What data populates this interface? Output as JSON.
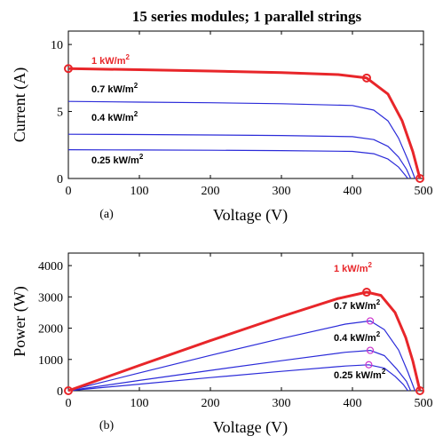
{
  "title": "15 series modules; 1 parallel strings",
  "colors": {
    "thin": "#2b2bd9",
    "thick": "#e8262a",
    "marker_blue": "#cc33cc",
    "marker_red": "#e8262a"
  },
  "chart_data": [
    {
      "type": "line",
      "panel_label": "(a)",
      "xlabel": "Voltage (V)",
      "ylabel": "Current (A)",
      "xlim": [
        0,
        500
      ],
      "ylim": [
        0,
        11
      ],
      "xticks": [
        "0",
        "100",
        "200",
        "300",
        "400",
        "500"
      ],
      "yticks": [
        "0",
        "5",
        "10"
      ],
      "xtick_values": [
        0,
        100,
        200,
        300,
        400,
        500
      ],
      "ytick_values": [
        0,
        5,
        10
      ],
      "grid": false,
      "series": [
        {
          "name": "1 kW/m2",
          "label_text": "1 kW/m",
          "label_sup": "2",
          "style": "thick",
          "points": [
            [
              0,
              8.2
            ],
            [
              100,
              8.12
            ],
            [
              200,
              8.02
            ],
            [
              300,
              7.9
            ],
            [
              380,
              7.75
            ],
            [
              420,
              7.5
            ],
            [
              450,
              6.3
            ],
            [
              470,
              4.3
            ],
            [
              485,
              2.0
            ],
            [
              495,
              0
            ]
          ],
          "markers": [
            [
              0,
              8.2
            ],
            [
              420,
              7.5
            ],
            [
              495,
              0
            ]
          ]
        },
        {
          "name": "0.7 kW/m2",
          "label_text": "0.7 kW/m",
          "label_sup": "2",
          "style": "thin",
          "points": [
            [
              0,
              5.75
            ],
            [
              100,
              5.7
            ],
            [
              200,
              5.65
            ],
            [
              300,
              5.58
            ],
            [
              400,
              5.45
            ],
            [
              430,
              5.1
            ],
            [
              450,
              4.3
            ],
            [
              465,
              3.0
            ],
            [
              478,
              1.4
            ],
            [
              488,
              0
            ]
          ]
        },
        {
          "name": "0.4 kW/m2",
          "label_text": "0.4 kW/m",
          "label_sup": "2",
          "style": "thin",
          "points": [
            [
              0,
              3.3
            ],
            [
              100,
              3.28
            ],
            [
              200,
              3.25
            ],
            [
              300,
              3.21
            ],
            [
              400,
              3.12
            ],
            [
              430,
              2.9
            ],
            [
              450,
              2.4
            ],
            [
              465,
              1.6
            ],
            [
              476,
              0.7
            ],
            [
              482,
              0
            ]
          ]
        },
        {
          "name": "0.25 kW/m2",
          "label_text": "0.25 kW/m",
          "label_sup": "2",
          "style": "thin",
          "points": [
            [
              0,
              2.15
            ],
            [
              100,
              2.13
            ],
            [
              200,
              2.11
            ],
            [
              300,
              2.08
            ],
            [
              400,
              2.02
            ],
            [
              430,
              1.85
            ],
            [
              450,
              1.45
            ],
            [
              465,
              0.85
            ],
            [
              472,
              0.4
            ],
            [
              478,
              0
            ]
          ]
        }
      ]
    },
    {
      "type": "line",
      "panel_label": "(b)",
      "xlabel": "Voltage (V)",
      "ylabel": "Power (W)",
      "xlim": [
        0,
        500
      ],
      "ylim": [
        0,
        4400
      ],
      "xticks": [
        "0",
        "100",
        "200",
        "300",
        "400",
        "500"
      ],
      "yticks": [
        "0",
        "1000",
        "2000",
        "3000",
        "4000"
      ],
      "xtick_values": [
        0,
        100,
        200,
        300,
        400,
        500
      ],
      "ytick_values": [
        0,
        1000,
        2000,
        3000,
        4000
      ],
      "grid": false,
      "series": [
        {
          "name": "1 kW/m2",
          "label_text": "1 kW/m",
          "label_sup": "2",
          "style": "thick",
          "points": [
            [
              0,
              0
            ],
            [
              100,
              810
            ],
            [
              200,
              1600
            ],
            [
              300,
              2370
            ],
            [
              380,
              2950
            ],
            [
              420,
              3150
            ],
            [
              440,
              3050
            ],
            [
              460,
              2500
            ],
            [
              475,
              1700
            ],
            [
              485,
              950
            ],
            [
              495,
              0
            ]
          ],
          "markers": [
            [
              0,
              0
            ],
            [
              420,
              3150
            ],
            [
              495,
              0
            ]
          ]
        },
        {
          "name": "0.7 kW/m2",
          "label_text": "0.7 kW/m",
          "label_sup": "2",
          "style": "thin",
          "points": [
            [
              0,
              0
            ],
            [
              100,
              570
            ],
            [
              200,
              1130
            ],
            [
              300,
              1670
            ],
            [
              390,
              2130
            ],
            [
              425,
              2230
            ],
            [
              445,
              1950
            ],
            [
              465,
              1300
            ],
            [
              478,
              600
            ],
            [
              488,
              0
            ]
          ],
          "markers": [
            [
              425,
              2230
            ]
          ]
        },
        {
          "name": "0.4 kW/m2",
          "label_text": "0.4 kW/m",
          "label_sup": "2",
          "style": "thin",
          "points": [
            [
              0,
              0
            ],
            [
              100,
              330
            ],
            [
              200,
              650
            ],
            [
              300,
              960
            ],
            [
              390,
              1230
            ],
            [
              425,
              1290
            ],
            [
              445,
              1120
            ],
            [
              462,
              700
            ],
            [
              476,
              300
            ],
            [
              482,
              0
            ]
          ],
          "markers": [
            [
              425,
              1290
            ]
          ]
        },
        {
          "name": "0.25 kW/m2",
          "label_text": "0.25 kW/m",
          "label_sup": "2",
          "style": "thin",
          "points": [
            [
              0,
              0
            ],
            [
              100,
              210
            ],
            [
              200,
              420
            ],
            [
              300,
              620
            ],
            [
              390,
              790
            ],
            [
              423,
              830
            ],
            [
              445,
              720
            ],
            [
              460,
              460
            ],
            [
              472,
              190
            ],
            [
              478,
              0
            ]
          ],
          "markers": [
            [
              423,
              830
            ]
          ]
        }
      ]
    }
  ]
}
